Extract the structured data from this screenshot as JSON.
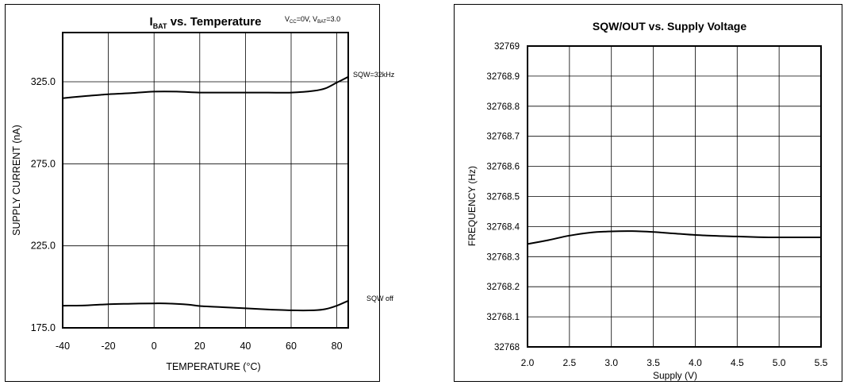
{
  "chart_data": [
    {
      "type": "line",
      "title": "I",
      "title_sub": "BAT",
      "title_rest": " vs. Temperature",
      "annotation": {
        "v1": "V",
        "s1": "CC",
        "t1": "=0V, V",
        "s2": "BAT",
        "t2": "=3.0"
      },
      "xlabel": "TEMPERATURE (°C)",
      "ylabel": "SUPPLY CURRENT (nA)",
      "xlim": [
        -40,
        85
      ],
      "ylim": [
        175,
        355
      ],
      "x_ticks": [
        -40,
        -20,
        0,
        20,
        40,
        60,
        80
      ],
      "x_tick_labels": [
        "-40",
        "-20",
        "0",
        "20",
        "40",
        "60",
        "80"
      ],
      "y_ticks": [
        175,
        225,
        275,
        325
      ],
      "y_tick_labels": [
        "175.0",
        "225.0",
        "275.0",
        "325.0"
      ],
      "grid": true,
      "series": [
        {
          "name": "SQW=32kHz",
          "x": [
            -40,
            -30,
            -20,
            -10,
            0,
            10,
            20,
            30,
            40,
            50,
            60,
            70,
            75,
            80,
            85
          ],
          "y": [
            315,
            316.3,
            317.4,
            318.1,
            319,
            319,
            318.4,
            318.4,
            318.4,
            318.4,
            318.4,
            319.5,
            321,
            324.5,
            328
          ]
        },
        {
          "name": "SQW off",
          "x": [
            -40,
            -30,
            -20,
            -10,
            0,
            5,
            15,
            20,
            30,
            40,
            50,
            60,
            70,
            75,
            80,
            85
          ],
          "y": [
            188.5,
            188.7,
            189.4,
            189.7,
            189.9,
            189.9,
            189.2,
            188.3,
            187.6,
            186.9,
            186.2,
            185.7,
            185.7,
            186.4,
            188.5,
            191.5
          ]
        }
      ]
    },
    {
      "type": "line",
      "title": "SQW/OUT vs. Supply Voltage",
      "xlabel": "Supply (V)",
      "ylabel": "FREQUENCY (Hz)",
      "xlim": [
        2.0,
        5.5
      ],
      "ylim": [
        32768.0,
        32769.0
      ],
      "x_ticks": [
        2.0,
        2.5,
        3.0,
        3.5,
        4.0,
        4.5,
        5.0,
        5.5
      ],
      "x_tick_labels": [
        "2.0",
        "2.5",
        "3.0",
        "3.5",
        "4.0",
        "4.5",
        "5.0",
        "5.5"
      ],
      "y_ticks": [
        32768.0,
        32768.1,
        32768.2,
        32768.3,
        32768.4,
        32768.5,
        32768.6,
        32768.7,
        32768.8,
        32768.9,
        32769.0
      ],
      "y_tick_labels": [
        "32768",
        "32768.1",
        "32768.2",
        "32768.3",
        "32768.4",
        "32768.5",
        "32768.6",
        "32768.7",
        "32768.8",
        "32768.9",
        "32769"
      ],
      "grid": true,
      "series": [
        {
          "x": [
            2.0,
            2.25,
            2.5,
            2.75,
            3.0,
            3.25,
            3.5,
            3.75,
            4.0,
            4.25,
            4.5,
            4.75,
            5.0,
            5.25,
            5.5
          ],
          "y": [
            32768.342,
            32768.355,
            32768.37,
            32768.38,
            32768.384,
            32768.385,
            32768.382,
            32768.377,
            32768.372,
            32768.369,
            32768.367,
            32768.365,
            32768.364,
            32768.364,
            32768.364
          ]
        }
      ]
    }
  ]
}
